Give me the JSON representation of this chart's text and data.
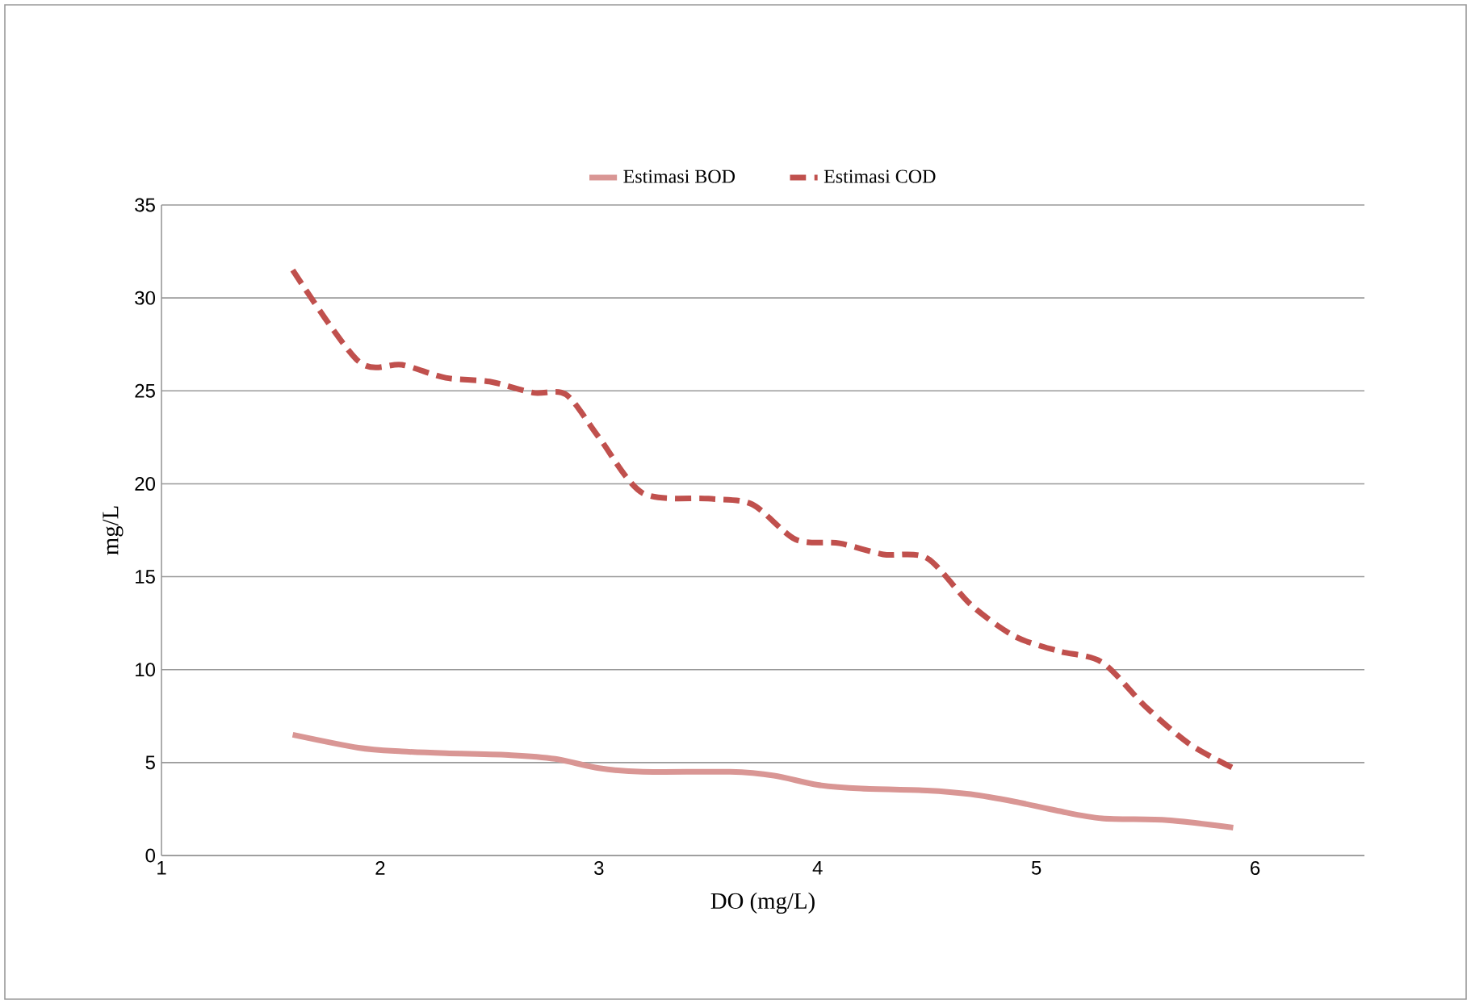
{
  "chart_data": {
    "type": "line",
    "xlabel": "DO (mg/L)",
    "ylabel": "mg/L",
    "xlim": [
      1,
      6.5
    ],
    "xticks": [
      1,
      2,
      3,
      4,
      5,
      6
    ],
    "ylim": [
      0,
      35
    ],
    "yticks": [
      0,
      5,
      10,
      15,
      20,
      25,
      30,
      35
    ],
    "grid": "y",
    "legend": "top",
    "marker": "none",
    "series": [
      {
        "name": "Estimasi BOD",
        "color": "#d99694",
        "line_style": "solid",
        "x": [
          1.6,
          1.9,
          2.1,
          2.3,
          2.6,
          2.8,
          3.0,
          3.2,
          3.6,
          3.8,
          4.0,
          4.2,
          4.5,
          4.7,
          4.9,
          5.1,
          5.3,
          5.6,
          5.9
        ],
        "values": [
          6.5,
          5.8,
          5.6,
          5.5,
          5.4,
          5.2,
          4.7,
          4.5,
          4.5,
          4.3,
          3.8,
          3.6,
          3.5,
          3.3,
          2.9,
          2.4,
          2.0,
          1.9,
          1.5
        ]
      },
      {
        "name": "Estimasi COD",
        "color": "#c0504d",
        "line_style": "dashed",
        "x": [
          1.6,
          1.9,
          2.1,
          2.3,
          2.5,
          2.7,
          2.85,
          3.0,
          3.2,
          3.5,
          3.7,
          3.9,
          4.1,
          4.3,
          4.5,
          4.7,
          4.9,
          5.1,
          5.3,
          5.5,
          5.7,
          5.9
        ],
        "values": [
          31.5,
          26.6,
          26.4,
          25.7,
          25.5,
          24.9,
          24.8,
          22.5,
          19.5,
          19.2,
          18.9,
          17.0,
          16.8,
          16.2,
          16.0,
          13.5,
          11.8,
          11.0,
          10.4,
          8.0,
          6.0,
          4.7
        ]
      }
    ]
  }
}
